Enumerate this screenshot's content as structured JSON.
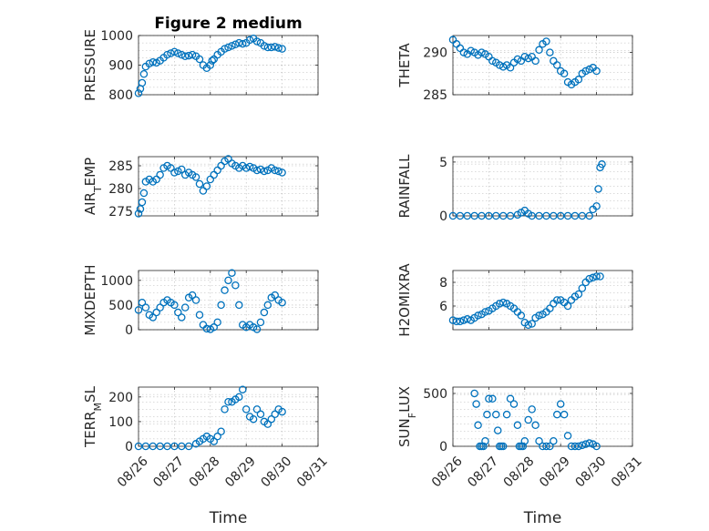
{
  "chart_data": [
    {
      "type": "scatter",
      "title": "Figure 2 medium",
      "ylabel": "PRESSURE",
      "ylim": [
        800,
        1000
      ],
      "yticks": [
        800,
        900,
        1000
      ],
      "xlim": [
        0,
        5
      ],
      "xticks": [
        0,
        1,
        2,
        3,
        4,
        5
      ],
      "xticklabels": [],
      "grid": true,
      "x": [
        0.0,
        0.05,
        0.1,
        0.15,
        0.2,
        0.3,
        0.4,
        0.5,
        0.6,
        0.7,
        0.8,
        0.9,
        1.0,
        1.1,
        1.2,
        1.3,
        1.4,
        1.5,
        1.6,
        1.7,
        1.8,
        1.9,
        2.0,
        2.05,
        2.1,
        2.2,
        2.3,
        2.4,
        2.5,
        2.6,
        2.7,
        2.8,
        2.9,
        3.0,
        3.1,
        3.2,
        3.3,
        3.4,
        3.5,
        3.6,
        3.7,
        3.8,
        3.9,
        4.0
      ],
      "values": [
        805,
        820,
        840,
        870,
        895,
        905,
        910,
        908,
        915,
        925,
        935,
        940,
        945,
        940,
        935,
        930,
        932,
        935,
        930,
        920,
        900,
        890,
        900,
        915,
        920,
        935,
        945,
        955,
        960,
        965,
        970,
        975,
        972,
        975,
        985,
        990,
        980,
        975,
        965,
        960,
        960,
        962,
        958,
        955
      ]
    },
    {
      "type": "scatter",
      "title": "",
      "ylabel": "THETA",
      "ylim": [
        285,
        292
      ],
      "yticks": [
        285,
        290
      ],
      "xlim": [
        0,
        5
      ],
      "xticks": [
        0,
        1,
        2,
        3,
        4,
        5
      ],
      "xticklabels": [],
      "grid": true,
      "x": [
        0.0,
        0.1,
        0.2,
        0.3,
        0.4,
        0.5,
        0.6,
        0.7,
        0.8,
        0.9,
        1.0,
        1.1,
        1.2,
        1.3,
        1.4,
        1.5,
        1.6,
        1.7,
        1.8,
        1.9,
        2.0,
        2.1,
        2.2,
        2.3,
        2.4,
        2.5,
        2.6,
        2.7,
        2.8,
        2.9,
        3.0,
        3.1,
        3.2,
        3.3,
        3.4,
        3.5,
        3.6,
        3.7,
        3.8,
        3.9,
        4.0
      ],
      "values": [
        291.5,
        291,
        290.5,
        290,
        289.8,
        290.2,
        290,
        289.7,
        290,
        289.8,
        289.5,
        289,
        288.8,
        288.5,
        288.3,
        288.5,
        288.2,
        288.8,
        289.2,
        289,
        289.5,
        289.3,
        289.5,
        289,
        290.3,
        291,
        291.3,
        290,
        289,
        288.5,
        287.8,
        287.5,
        286.5,
        286.2,
        286.5,
        286.8,
        287.5,
        287.8,
        288,
        288.2,
        287.8
      ]
    },
    {
      "type": "scatter",
      "title": "",
      "ylabel": "AIR_TEMP",
      "ylim": [
        274,
        287
      ],
      "yticks": [
        275,
        280,
        285
      ],
      "xlim": [
        0,
        5
      ],
      "xticks": [
        0,
        1,
        2,
        3,
        4,
        5
      ],
      "xticklabels": [],
      "grid": true,
      "x": [
        0.0,
        0.05,
        0.1,
        0.15,
        0.2,
        0.3,
        0.4,
        0.5,
        0.6,
        0.7,
        0.8,
        0.9,
        1.0,
        1.1,
        1.2,
        1.3,
        1.4,
        1.5,
        1.6,
        1.7,
        1.8,
        1.9,
        2.0,
        2.1,
        2.2,
        2.3,
        2.4,
        2.5,
        2.6,
        2.7,
        2.8,
        2.9,
        3.0,
        3.1,
        3.2,
        3.3,
        3.4,
        3.5,
        3.6,
        3.7,
        3.8,
        3.9,
        4.0
      ],
      "values": [
        274.5,
        275.5,
        277,
        279,
        281.5,
        282,
        281.5,
        282,
        283,
        284.5,
        285,
        284.5,
        283.5,
        283.8,
        284.2,
        283,
        283.5,
        283,
        282.5,
        281,
        279.5,
        280.5,
        282,
        283,
        284,
        285,
        286,
        286.5,
        285.5,
        285,
        284.5,
        285,
        284.5,
        284.8,
        284.5,
        284,
        284.2,
        283.8,
        284,
        284.5,
        284,
        283.8,
        283.5
      ]
    },
    {
      "type": "scatter",
      "title": "",
      "ylabel": "RAINFALL",
      "ylim": [
        0,
        5.5
      ],
      "yticks": [
        0,
        5
      ],
      "xlim": [
        0,
        5
      ],
      "xticks": [
        0,
        1,
        2,
        3,
        4,
        5
      ],
      "xticklabels": [],
      "grid": true,
      "x": [
        0.0,
        0.2,
        0.4,
        0.6,
        0.8,
        1.0,
        1.2,
        1.4,
        1.6,
        1.8,
        1.9,
        2.0,
        2.1,
        2.2,
        2.4,
        2.6,
        2.8,
        3.0,
        3.2,
        3.4,
        3.6,
        3.8,
        3.9,
        4.0,
        4.05,
        4.1,
        4.15
      ],
      "values": [
        0,
        0,
        0,
        0,
        0,
        0,
        0,
        0,
        0,
        0.1,
        0.3,
        0.5,
        0.2,
        0,
        0,
        0,
        0,
        0,
        0,
        0,
        0,
        0,
        0.6,
        0.9,
        2.5,
        4.5,
        4.8
      ]
    },
    {
      "type": "scatter",
      "title": "",
      "ylabel": "MIXDEPTH",
      "ylim": [
        0,
        1200
      ],
      "yticks": [
        0,
        500,
        1000
      ],
      "xlim": [
        0,
        5
      ],
      "xticks": [
        0,
        1,
        2,
        3,
        4,
        5
      ],
      "xticklabels": [],
      "grid": true,
      "x": [
        0.0,
        0.1,
        0.2,
        0.3,
        0.4,
        0.5,
        0.6,
        0.7,
        0.8,
        0.9,
        1.0,
        1.1,
        1.2,
        1.3,
        1.4,
        1.5,
        1.6,
        1.7,
        1.8,
        1.9,
        2.0,
        2.1,
        2.2,
        2.3,
        2.4,
        2.5,
        2.6,
        2.7,
        2.8,
        2.9,
        3.0,
        3.1,
        3.2,
        3.3,
        3.4,
        3.5,
        3.6,
        3.7,
        3.8,
        3.9,
        4.0
      ],
      "values": [
        400,
        550,
        450,
        300,
        250,
        350,
        450,
        550,
        600,
        550,
        500,
        350,
        250,
        450,
        650,
        700,
        600,
        300,
        100,
        20,
        10,
        50,
        150,
        500,
        800,
        1000,
        1150,
        900,
        500,
        100,
        50,
        100,
        50,
        10,
        150,
        350,
        500,
        650,
        700,
        600,
        550
      ]
    },
    {
      "type": "scatter",
      "title": "",
      "ylabel": "H2OMIXRA",
      "ylim": [
        4,
        9
      ],
      "yticks": [
        6,
        8
      ],
      "xlim": [
        0,
        5
      ],
      "xticks": [
        0,
        1,
        2,
        3,
        4,
        5
      ],
      "xticklabels": [],
      "grid": true,
      "x": [
        0.0,
        0.1,
        0.2,
        0.3,
        0.4,
        0.5,
        0.6,
        0.7,
        0.8,
        0.9,
        1.0,
        1.1,
        1.2,
        1.3,
        1.4,
        1.5,
        1.6,
        1.7,
        1.8,
        1.9,
        2.0,
        2.1,
        2.2,
        2.3,
        2.4,
        2.5,
        2.6,
        2.7,
        2.8,
        2.9,
        3.0,
        3.1,
        3.2,
        3.3,
        3.4,
        3.5,
        3.6,
        3.7,
        3.8,
        3.9,
        4.0,
        4.1
      ],
      "values": [
        4.8,
        4.7,
        4.7,
        4.8,
        4.9,
        4.8,
        5,
        5.2,
        5.3,
        5.5,
        5.6,
        5.8,
        6,
        6.2,
        6.3,
        6.2,
        6,
        5.8,
        5.5,
        5.2,
        4.6,
        4.4,
        4.5,
        5,
        5.2,
        5.3,
        5.5,
        5.8,
        6.2,
        6.5,
        6.5,
        6.3,
        6,
        6.5,
        6.8,
        7,
        7.5,
        8,
        8.3,
        8.4,
        8.5,
        8.5
      ]
    },
    {
      "type": "scatter",
      "title": "",
      "ylabel": "TERR_MSL",
      "ylim": [
        0,
        240
      ],
      "yticks": [
        0,
        100,
        200
      ],
      "xlim": [
        0,
        5
      ],
      "xticks": [
        0,
        1,
        2,
        3,
        4,
        5
      ],
      "xticklabels": [
        "08/26",
        "08/27",
        "08/28",
        "08/29",
        "08/30",
        "08/31"
      ],
      "xlabel": "Time",
      "grid": true,
      "x": [
        0.0,
        0.2,
        0.4,
        0.6,
        0.8,
        1.0,
        1.2,
        1.4,
        1.6,
        1.7,
        1.8,
        1.9,
        2.0,
        2.1,
        2.2,
        2.3,
        2.4,
        2.5,
        2.6,
        2.7,
        2.8,
        2.9,
        3.0,
        3.1,
        3.2,
        3.3,
        3.4,
        3.5,
        3.6,
        3.7,
        3.8,
        3.9,
        4.0
      ],
      "values": [
        0,
        0,
        0,
        0,
        0,
        0,
        0,
        0,
        10,
        20,
        30,
        40,
        30,
        20,
        40,
        60,
        150,
        180,
        180,
        190,
        200,
        230,
        150,
        120,
        110,
        150,
        130,
        100,
        90,
        110,
        130,
        150,
        140
      ]
    },
    {
      "type": "scatter",
      "title": "",
      "ylabel": "SUN_FLUX",
      "ylim": [
        0,
        560
      ],
      "yticks": [
        0,
        500
      ],
      "xlim": [
        0,
        5
      ],
      "xticks": [
        0,
        1,
        2,
        3,
        4,
        5
      ],
      "xticklabels": [
        "08/26",
        "08/27",
        "08/28",
        "08/29",
        "08/30",
        "08/31"
      ],
      "xlabel": "Time",
      "grid": true,
      "x": [
        0.6,
        0.65,
        0.7,
        0.75,
        0.8,
        0.85,
        0.9,
        0.95,
        1.0,
        1.1,
        1.2,
        1.25,
        1.3,
        1.35,
        1.4,
        1.5,
        1.6,
        1.7,
        1.8,
        1.85,
        1.9,
        1.95,
        2.0,
        2.1,
        2.2,
        2.3,
        2.4,
        2.5,
        2.6,
        2.7,
        2.8,
        2.9,
        3.0,
        3.1,
        3.2,
        3.3,
        3.4,
        3.5,
        3.6,
        3.7,
        3.8,
        3.9,
        4.0
      ],
      "values": [
        500,
        400,
        200,
        0,
        0,
        0,
        50,
        300,
        450,
        450,
        300,
        150,
        0,
        0,
        0,
        300,
        450,
        400,
        200,
        0,
        0,
        0,
        50,
        250,
        350,
        200,
        50,
        0,
        0,
        0,
        50,
        300,
        400,
        300,
        100,
        0,
        0,
        0,
        10,
        20,
        30,
        20,
        0
      ]
    }
  ]
}
